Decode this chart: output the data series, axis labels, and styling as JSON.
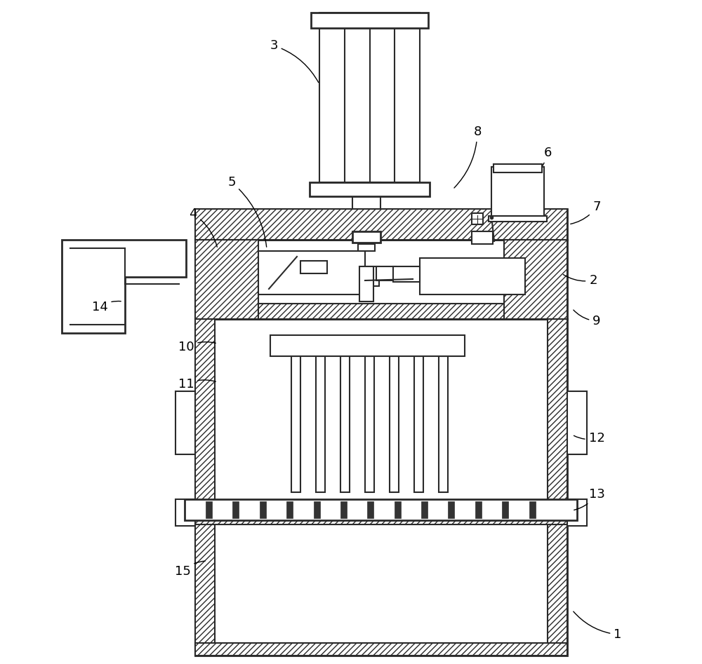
{
  "bg_color": "#ffffff",
  "line_color": "#2a2a2a",
  "line_width": 1.5,
  "fig_width": 10.0,
  "fig_height": 9.47,
  "labels_data": [
    [
      "1",
      880,
      905,
      815,
      870
    ],
    [
      "2",
      845,
      400,
      800,
      390
    ],
    [
      "3",
      390,
      65,
      455,
      120
    ],
    [
      "4",
      275,
      305,
      310,
      355
    ],
    [
      "5",
      330,
      260,
      380,
      355
    ],
    [
      "6",
      780,
      218,
      755,
      255
    ],
    [
      "7",
      850,
      295,
      810,
      320
    ],
    [
      "8",
      680,
      188,
      645,
      270
    ],
    [
      "9",
      850,
      458,
      815,
      440
    ],
    [
      "10",
      265,
      495,
      310,
      490
    ],
    [
      "11",
      265,
      548,
      310,
      545
    ],
    [
      "12",
      850,
      625,
      815,
      620
    ],
    [
      "13",
      850,
      705,
      815,
      728
    ],
    [
      "14",
      142,
      438,
      175,
      430
    ],
    [
      "15",
      260,
      815,
      295,
      800
    ]
  ]
}
